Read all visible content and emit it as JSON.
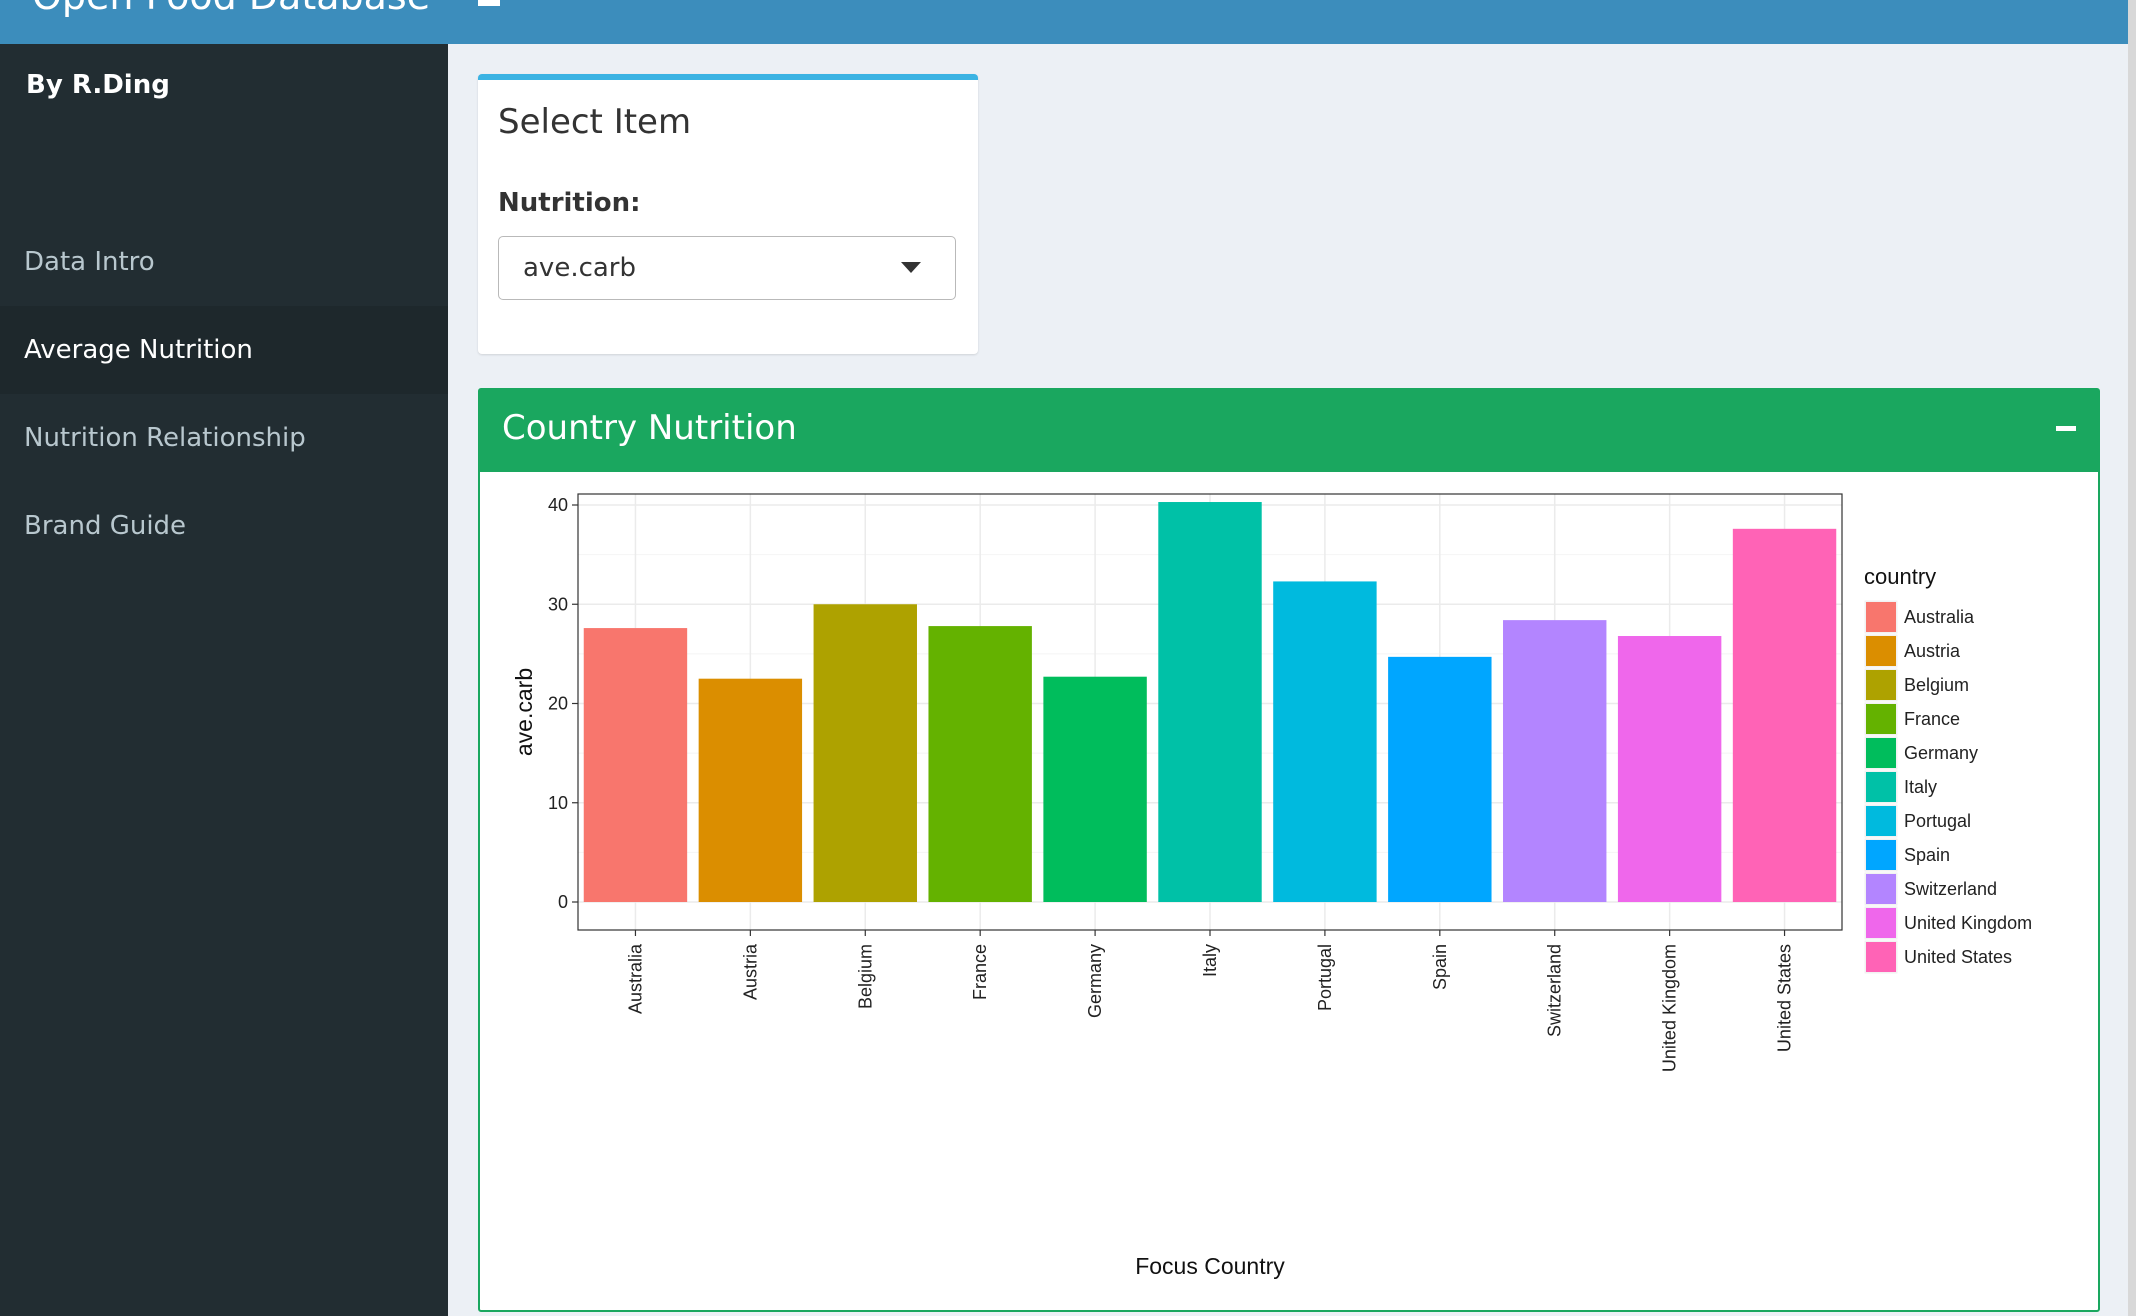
{
  "app": {
    "title": "Open Food Database"
  },
  "sidebar": {
    "byline": "By R.Ding",
    "items": [
      {
        "label": "Data Intro",
        "active": false
      },
      {
        "label": "Average Nutrition",
        "active": true
      },
      {
        "label": "Nutrition Relationship",
        "active": false
      },
      {
        "label": "Brand Guide",
        "active": false
      }
    ]
  },
  "select_box": {
    "title": "Select Item",
    "label": "Nutrition:",
    "value": "ave.carb"
  },
  "chart_box": {
    "title": "Country Nutrition"
  },
  "colors": {
    "header": "#3c8dbc",
    "sidebar": "#222d32",
    "box_success": "#1aa75f",
    "box_info_border": "#3bb3e3"
  },
  "chart_data": {
    "type": "bar",
    "categories": [
      "Australia",
      "Austria",
      "Belgium",
      "France",
      "Germany",
      "Italy",
      "Portugal",
      "Spain",
      "Switzerland",
      "United Kingdom",
      "United States"
    ],
    "values": [
      27.6,
      22.5,
      30.0,
      27.8,
      22.7,
      40.3,
      32.3,
      24.7,
      28.4,
      26.8,
      37.6
    ],
    "colors": [
      "#F8766D",
      "#DB8E00",
      "#AEA200",
      "#64B200",
      "#00BD5C",
      "#00C1A7",
      "#00BADE",
      "#00A6FF",
      "#B385FF",
      "#EF67EB",
      "#FF63B6"
    ],
    "xlabel": "Focus Country",
    "ylabel": "ave.carb",
    "ylim": [
      0,
      40
    ],
    "yticks": [
      0,
      10,
      20,
      30,
      40
    ],
    "grid": true,
    "legend": {
      "title": "country",
      "placement": "right"
    }
  }
}
